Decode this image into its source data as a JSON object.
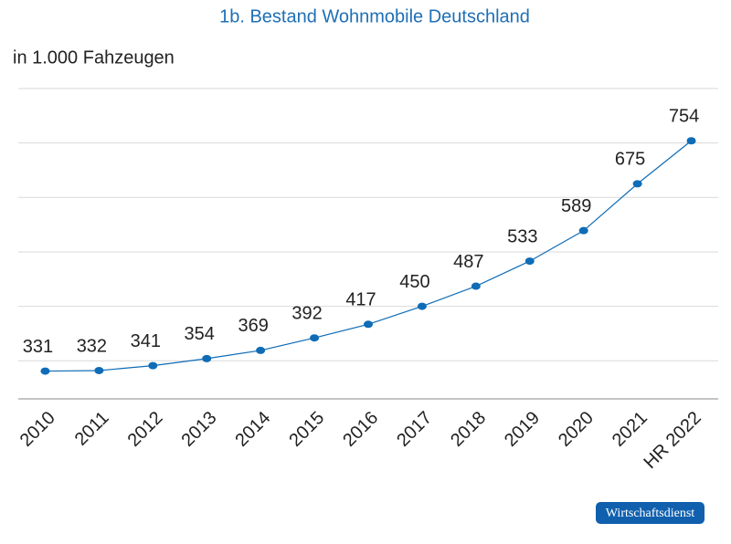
{
  "chart_data": {
    "type": "line",
    "title": "1b. Bestand Wohnmobile Deutschland",
    "subtitle": "in 1.000 Fahzeugen",
    "categories": [
      "2010",
      "2011",
      "2012",
      "2013",
      "2014",
      "2015",
      "2016",
      "2017",
      "2018",
      "2019",
      "2020",
      "2021",
      "HR 2022"
    ],
    "series": [
      {
        "name": "Bestand Wohnmobile",
        "color": "#0f6cb6",
        "values": [
          331,
          332,
          341,
          354,
          369,
          392,
          417,
          450,
          487,
          533,
          589,
          675,
          754
        ]
      }
    ],
    "ylim": [
      280,
      850
    ],
    "yticks": [
      350,
      450,
      550,
      650,
      750,
      850
    ],
    "grid": true,
    "logo": "Wirtschaftsdienst"
  }
}
